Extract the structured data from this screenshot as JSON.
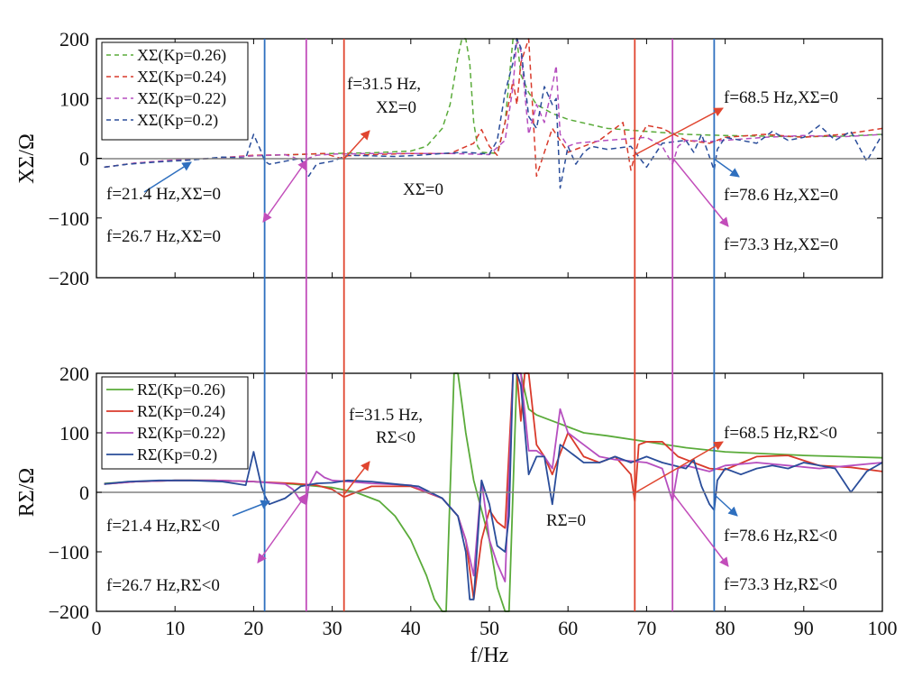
{
  "chart_data": [
    {
      "type": "line",
      "panel": "top",
      "ylabel": "XΣ/Ω",
      "xlabel": "",
      "xlim": [
        0,
        100
      ],
      "ylim": [
        -200,
        200
      ],
      "yticks": [
        200,
        100,
        0,
        -100,
        -200
      ],
      "ytick_labels": [
        "200",
        "100",
        "0",
        "−100",
        "−200"
      ],
      "grid": false,
      "legend_position": "top-left",
      "line_style": "dashed",
      "series": [
        {
          "name": "XΣ(Kp=0.26)",
          "color": "#5aab3a",
          "x": [
            1,
            5,
            10,
            15,
            20,
            25,
            30,
            35,
            40,
            42,
            44,
            45,
            46,
            46.5,
            47,
            47.5,
            48,
            48.5,
            49,
            51,
            52,
            53,
            53.5,
            54,
            55,
            56,
            58,
            60,
            65,
            70,
            75,
            80,
            85,
            90,
            95,
            100
          ],
          "y": [
            -15,
            -8,
            -4,
            0,
            4,
            6,
            8,
            9,
            12,
            20,
            50,
            90,
            170,
            200,
            200,
            160,
            60,
            20,
            10,
            8,
            60,
            200,
            200,
            140,
            110,
            90,
            75,
            65,
            50,
            45,
            40,
            38,
            37,
            36,
            37,
            40
          ]
        },
        {
          "name": "XΣ(Kp=0.24)",
          "color": "#d93a2b",
          "x": [
            1,
            5,
            10,
            15,
            20,
            25,
            29,
            31,
            32,
            35,
            40,
            45,
            48,
            49,
            50,
            51,
            52,
            53,
            53.5,
            54,
            55,
            56,
            57,
            58,
            60,
            62,
            64,
            66,
            67,
            68,
            69,
            70,
            72,
            75,
            78,
            80,
            85,
            90,
            95,
            100
          ],
          "y": [
            -15,
            -8,
            -3,
            0,
            5,
            6,
            8,
            0,
            4,
            6,
            8,
            8,
            25,
            48,
            20,
            5,
            60,
            130,
            90,
            160,
            200,
            -30,
            10,
            50,
            10,
            20,
            30,
            50,
            60,
            -20,
            30,
            55,
            50,
            30,
            25,
            35,
            40,
            35,
            40,
            50
          ]
        },
        {
          "name": "XΣ(Kp=0.22)",
          "color": "#b64fbf",
          "x": [
            1,
            5,
            10,
            15,
            20,
            24,
            25,
            26.7,
            27,
            28,
            30,
            35,
            40,
            45,
            50,
            52,
            53,
            53.5,
            54,
            55,
            56,
            57,
            58,
            58.5,
            59,
            60,
            61,
            65,
            70,
            72,
            73.3,
            74,
            75,
            78,
            80,
            85,
            90,
            95,
            100
          ],
          "y": [
            -15,
            -8,
            -3,
            0,
            4,
            6,
            2,
            -8,
            0,
            5,
            7,
            8,
            8,
            8,
            6,
            30,
            120,
            200,
            180,
            40,
            90,
            60,
            120,
            155,
            40,
            20,
            25,
            30,
            35,
            20,
            -10,
            20,
            30,
            28,
            30,
            35,
            38,
            36,
            40
          ]
        },
        {
          "name": "XΣ(Kp=0.2)",
          "color": "#2a4d9a",
          "x": [
            1,
            4,
            8,
            12,
            16,
            19,
            20,
            21,
            21.4,
            22,
            24,
            26,
            27,
            28,
            30,
            32,
            35,
            38,
            41,
            44,
            47,
            50,
            51,
            52,
            53,
            53.5,
            54,
            55,
            56,
            57,
            58,
            58.5,
            59,
            60,
            61,
            62,
            63,
            65,
            68,
            70,
            72,
            75,
            76,
            77,
            78.6,
            79,
            80,
            82,
            84,
            86,
            88,
            90,
            92,
            94,
            96,
            98,
            100
          ],
          "y": [
            -15,
            -10,
            -6,
            -3,
            2,
            0,
            40,
            10,
            -5,
            -10,
            -5,
            0,
            -30,
            -10,
            -5,
            5,
            4,
            3,
            5,
            8,
            10,
            7,
            30,
            110,
            160,
            200,
            185,
            70,
            50,
            120,
            90,
            100,
            -50,
            20,
            -10,
            10,
            20,
            15,
            20,
            -15,
            25,
            30,
            10,
            40,
            -20,
            15,
            35,
            30,
            25,
            45,
            30,
            35,
            55,
            30,
            45,
            -5,
            40
          ]
        }
      ],
      "annotations": [
        "f=21.4 Hz,XΣ=0",
        "f=26.7 Hz,XΣ=0",
        "f=31.5 Hz,",
        "XΣ=0",
        "XΣ=0",
        "f=68.5 Hz,XΣ=0",
        "f=78.6 Hz,XΣ=0",
        "f=73.3 Hz,XΣ=0"
      ]
    },
    {
      "type": "line",
      "panel": "bottom",
      "ylabel": "RΣ/Ω",
      "xlabel": "f/Hz",
      "xlim": [
        0,
        100
      ],
      "ylim": [
        -200,
        200
      ],
      "xticks": [
        0,
        10,
        20,
        30,
        40,
        50,
        60,
        70,
        80,
        90,
        100
      ],
      "xtick_labels": [
        "0",
        "10",
        "20",
        "30",
        "40",
        "50",
        "60",
        "70",
        "80",
        "90",
        "100"
      ],
      "yticks": [
        200,
        100,
        0,
        -100,
        -200
      ],
      "ytick_labels": [
        "200",
        "100",
        "0",
        "−100",
        "−200"
      ],
      "grid": false,
      "legend_position": "top-left",
      "line_style": "solid",
      "series": [
        {
          "name": "RΣ(Kp=0.26)",
          "color": "#5aab3a",
          "x": [
            1,
            5,
            10,
            15,
            20,
            25,
            30,
            33,
            36,
            38,
            40,
            42,
            43,
            44,
            44.5,
            45.5,
            46,
            46.5,
            47,
            48,
            50,
            51,
            52,
            52.5,
            53.5,
            54,
            55,
            56,
            58,
            60,
            62,
            65,
            70,
            75,
            80,
            85,
            90,
            95,
            100
          ],
          "y": [
            15,
            18,
            20,
            20,
            18,
            14,
            8,
            0,
            -15,
            -40,
            -80,
            -140,
            -180,
            -200,
            -200,
            200,
            200,
            150,
            100,
            20,
            -80,
            -160,
            -200,
            -200,
            200,
            200,
            140,
            130,
            120,
            110,
            100,
            95,
            85,
            75,
            68,
            65,
            62,
            60,
            58
          ]
        },
        {
          "name": "RΣ(Kp=0.24)",
          "color": "#d93a2b",
          "x": [
            1,
            5,
            10,
            15,
            20,
            25,
            28,
            30,
            31.5,
            33,
            35,
            40,
            44,
            46,
            47,
            48,
            49,
            50,
            51,
            52,
            53,
            53.5,
            54,
            54.5,
            55,
            56,
            57,
            58,
            60,
            62,
            64,
            66,
            68,
            68.5,
            69,
            70,
            72,
            74,
            76,
            78,
            80,
            84,
            88,
            92,
            96,
            100
          ],
          "y": [
            14,
            18,
            20,
            20,
            18,
            15,
            12,
            5,
            -8,
            0,
            10,
            10,
            -10,
            -40,
            -80,
            -180,
            -80,
            -30,
            -50,
            -60,
            200,
            200,
            120,
            200,
            200,
            80,
            60,
            30,
            100,
            60,
            50,
            60,
            30,
            -15,
            80,
            85,
            85,
            60,
            50,
            40,
            38,
            60,
            62,
            45,
            42,
            35
          ]
        },
        {
          "name": "RΣ(Kp=0.22)",
          "color": "#b64fbf",
          "x": [
            1,
            5,
            10,
            15,
            20,
            24,
            25,
            26,
            26.7,
            27,
            28,
            29,
            30,
            35,
            40,
            44,
            46,
            47,
            48,
            49,
            50,
            51,
            52,
            53,
            54,
            55,
            56,
            57,
            58,
            59,
            60,
            62,
            64,
            66,
            70,
            72,
            73.3,
            74,
            75,
            78,
            80,
            84,
            88,
            92,
            96,
            100
          ],
          "y": [
            14,
            18,
            20,
            20,
            18,
            14,
            5,
            -15,
            -20,
            10,
            35,
            25,
            20,
            15,
            12,
            -10,
            -40,
            -80,
            -140,
            20,
            -80,
            -120,
            -150,
            200,
            200,
            70,
            70,
            60,
            40,
            140,
            100,
            80,
            60,
            55,
            50,
            40,
            -15,
            40,
            45,
            35,
            45,
            50,
            45,
            40,
            45,
            50
          ]
        },
        {
          "name": "RΣ(Kp=0.2)",
          "color": "#2a4d9a",
          "x": [
            1,
            4,
            8,
            12,
            16,
            19,
            20,
            21,
            21.4,
            22,
            24,
            26,
            28,
            30,
            32,
            35,
            38,
            41,
            44,
            46,
            47,
            47.5,
            48,
            49,
            50,
            51,
            52,
            52.5,
            53,
            53.5,
            54,
            55,
            56,
            57,
            58,
            59,
            60,
            61,
            62,
            64,
            66,
            68,
            70,
            72,
            75,
            76,
            77,
            78,
            78.6,
            79,
            80,
            82,
            84,
            86,
            88,
            90,
            92,
            94,
            96,
            98,
            100
          ],
          "y": [
            14,
            18,
            20,
            20,
            18,
            12,
            68,
            10,
            -5,
            -20,
            -10,
            10,
            15,
            16,
            20,
            18,
            14,
            10,
            -10,
            -40,
            -100,
            -180,
            -180,
            20,
            -20,
            -90,
            -100,
            -40,
            200,
            200,
            180,
            30,
            60,
            60,
            -20,
            80,
            70,
            60,
            50,
            50,
            60,
            50,
            60,
            50,
            40,
            55,
            10,
            -20,
            -30,
            20,
            40,
            30,
            40,
            45,
            40,
            50,
            45,
            40,
            0,
            35,
            50
          ]
        }
      ],
      "annotations": [
        "f=21.4 Hz,RΣ<0",
        "f=26.7 Hz,RΣ<0",
        "f=31.5 Hz,",
        "RΣ<0",
        "RΣ=0",
        "f=68.5 Hz,RΣ<0",
        "f=78.6 Hz,RΣ<0",
        "f=73.3 Hz,RΣ<0"
      ]
    }
  ],
  "marker_lines": [
    {
      "f": 21.4,
      "color": "#2e6fbf"
    },
    {
      "f": 26.7,
      "color": "#c24dba"
    },
    {
      "f": 31.5,
      "color": "#e0452f"
    },
    {
      "f": 68.5,
      "color": "#e0452f"
    },
    {
      "f": 73.3,
      "color": "#c24dba"
    },
    {
      "f": 78.6,
      "color": "#2e6fbf"
    }
  ]
}
